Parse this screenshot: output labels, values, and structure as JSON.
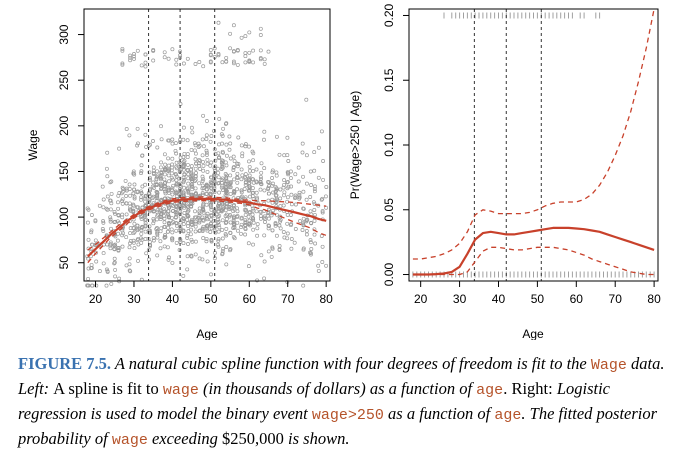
{
  "chart_data": [
    {
      "type": "scatter",
      "panel": "left",
      "xlabel": "Age",
      "ylabel": "Wage",
      "xlim": [
        17,
        81
      ],
      "ylim": [
        30,
        328
      ],
      "xticks": [
        20,
        30,
        40,
        50,
        60,
        70,
        80
      ],
      "yticks": [
        50,
        100,
        150,
        200,
        250,
        300
      ],
      "knots": [
        33.8,
        42,
        51
      ],
      "colors": {
        "points": "#9a9a9a",
        "fit": "#c8412b",
        "knot": "#333333"
      },
      "series": [
        {
          "kind": "fit",
          "x": [
            18,
            20,
            22,
            24,
            26,
            28,
            30,
            32,
            34,
            36,
            38,
            40,
            42,
            44,
            46,
            48,
            50,
            52,
            54,
            56,
            58,
            60,
            62,
            64,
            66,
            68,
            70,
            72,
            74,
            76,
            78,
            80
          ],
          "y": [
            57,
            65,
            73,
            81,
            88,
            95,
            101,
            106,
            110,
            113,
            116,
            118,
            119,
            119.5,
            120,
            120,
            120,
            119.5,
            119,
            118,
            117,
            116,
            114,
            113,
            111,
            109,
            107,
            105,
            103,
            101,
            98,
            96
          ]
        },
        {
          "kind": "upper-band",
          "x": [
            18,
            20,
            22,
            24,
            26,
            28,
            30,
            32,
            34,
            36,
            38,
            40,
            42,
            44,
            46,
            48,
            50,
            52,
            54,
            56,
            58,
            60,
            62,
            64,
            66,
            68,
            70,
            72,
            74,
            76,
            78,
            80
          ],
          "y": [
            64,
            70,
            77,
            84,
            91,
            97,
            103,
            108,
            112,
            115,
            118,
            120,
            121,
            121.5,
            122,
            122,
            122,
            121.5,
            121,
            120,
            119,
            118.5,
            118,
            118,
            117.5,
            117,
            116.5,
            116,
            115,
            114,
            113,
            112
          ]
        },
        {
          "kind": "lower-band",
          "x": [
            18,
            20,
            22,
            24,
            26,
            28,
            30,
            32,
            34,
            36,
            38,
            40,
            42,
            44,
            46,
            48,
            50,
            52,
            54,
            56,
            58,
            60,
            62,
            64,
            66,
            68,
            70,
            72,
            74,
            76,
            78,
            80
          ],
          "y": [
            50,
            60,
            69,
            78,
            85,
            92,
            99,
            104,
            108,
            111,
            114,
            116,
            117,
            117.5,
            118,
            118,
            118,
            117.5,
            117,
            116,
            115,
            113.5,
            110,
            108,
            104.5,
            101,
            97.5,
            94,
            91,
            88,
            83,
            80
          ]
        }
      ]
    },
    {
      "type": "line",
      "panel": "right",
      "xlabel": "Age",
      "ylabel": "Pr(Wage>250 | Age)",
      "xlim": [
        17,
        81
      ],
      "ylim": [
        -0.005,
        0.205
      ],
      "xticks": [
        20,
        30,
        40,
        50,
        60,
        70,
        80
      ],
      "yticks": [
        0.0,
        0.05,
        0.1,
        0.15,
        0.2
      ],
      "ytick_labels": [
        "0.00",
        "0.05",
        "0.10",
        "0.15",
        "0.20"
      ],
      "knots": [
        33.8,
        42,
        51
      ],
      "colors": {
        "rug": "#a0a0a0",
        "fit": "#c8412b",
        "knot": "#333333"
      },
      "series": [
        {
          "kind": "fit",
          "x": [
            18,
            20,
            22,
            24,
            26,
            28,
            30,
            32,
            34,
            36,
            38,
            40,
            42,
            44,
            46,
            48,
            50,
            52,
            54,
            56,
            58,
            60,
            62,
            64,
            66,
            68,
            70,
            72,
            74,
            76,
            78,
            80
          ],
          "y": [
            0.0,
            0.0,
            0.0,
            0.0003,
            0.0008,
            0.002,
            0.006,
            0.016,
            0.027,
            0.032,
            0.033,
            0.032,
            0.031,
            0.031,
            0.032,
            0.033,
            0.034,
            0.035,
            0.036,
            0.036,
            0.036,
            0.0355,
            0.035,
            0.034,
            0.033,
            0.031,
            0.029,
            0.027,
            0.025,
            0.023,
            0.021,
            0.019
          ]
        },
        {
          "kind": "upper-band",
          "x": [
            18,
            20,
            22,
            24,
            26,
            28,
            30,
            32,
            34,
            36,
            38,
            40,
            42,
            44,
            46,
            48,
            50,
            52,
            54,
            56,
            58,
            60,
            62,
            64,
            66,
            68,
            70,
            72,
            74,
            76,
            78,
            80
          ],
          "y": [
            0.012,
            0.012,
            0.013,
            0.014,
            0.016,
            0.019,
            0.024,
            0.033,
            0.046,
            0.05,
            0.049,
            0.047,
            0.047,
            0.047,
            0.047,
            0.048,
            0.05,
            0.053,
            0.055,
            0.056,
            0.056,
            0.056,
            0.058,
            0.062,
            0.069,
            0.079,
            0.092,
            0.107,
            0.126,
            0.149,
            0.175,
            0.205
          ]
        },
        {
          "kind": "lower-band",
          "x": [
            18,
            20,
            22,
            24,
            26,
            28,
            30,
            32,
            34,
            36,
            38,
            40,
            42,
            44,
            46,
            48,
            50,
            52,
            54,
            56,
            58,
            60,
            62,
            64,
            66,
            68,
            70,
            72,
            74,
            76,
            78,
            80
          ],
          "y": [
            0.0,
            0.0,
            0.0,
            0.0,
            0.0,
            0.0,
            0.0,
            0.002,
            0.01,
            0.018,
            0.021,
            0.021,
            0.02,
            0.019,
            0.019,
            0.02,
            0.021,
            0.021,
            0.021,
            0.02,
            0.019,
            0.017,
            0.015,
            0.012,
            0.01,
            0.008,
            0.006,
            0.004,
            0.002,
            0.001,
            0.0,
            0.0
          ]
        }
      ]
    }
  ],
  "caption": {
    "label": "FIGURE 7.5.",
    "t1": " A natural cubic spline function with four degrees of freedom is fit to the ",
    "c1": "Wage",
    "t2": " data. Left: ",
    "t3": "A spline is fit to ",
    "c2": "wage",
    "t4": " (in thousands of dollars) as a function of ",
    "c3": "age",
    "t5": ". Right: ",
    "t6": "Logistic regression is used to model the binary event ",
    "c4": "wage>250",
    "t7": " as a function of ",
    "c5": "age",
    "t8": ". The fitted posterior probability of ",
    "c6": "wage",
    "t9": " exceeding ",
    "t10": "$250,000",
    "t11": " is shown."
  }
}
